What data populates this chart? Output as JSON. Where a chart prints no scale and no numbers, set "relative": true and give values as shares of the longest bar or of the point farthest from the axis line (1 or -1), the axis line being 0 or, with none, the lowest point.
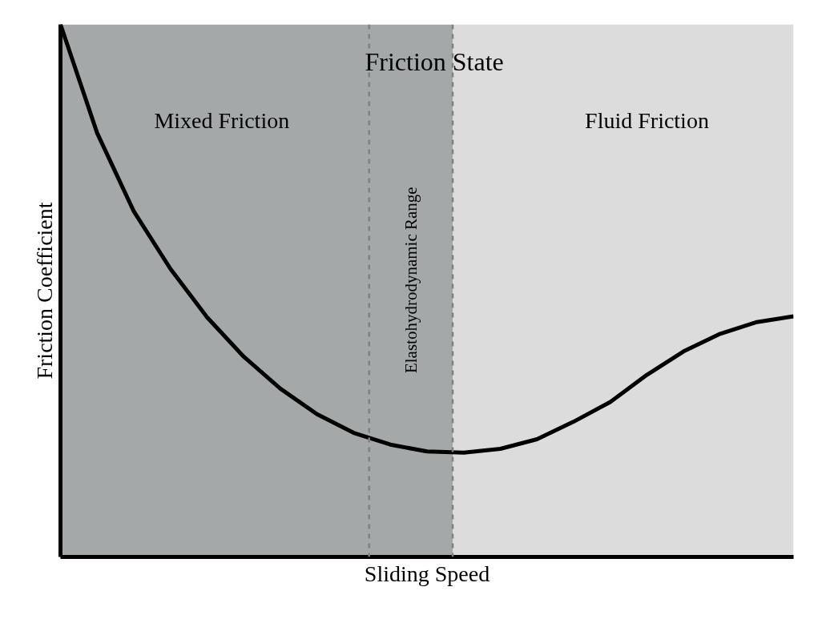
{
  "chart_data": {
    "type": "line",
    "relative": true,
    "title": "Friction State",
    "xlabel": "Sliding Speed",
    "ylabel": "Friction Coefficient",
    "categories": [
      null,
      null,
      null,
      null,
      null,
      null,
      null,
      null,
      null,
      null,
      null,
      null,
      null,
      null,
      null,
      null,
      null,
      null,
      null,
      null,
      null
    ],
    "series": [
      {
        "color": "#000000",
        "values": [
          1.0,
          0.796,
          0.649,
          0.541,
          0.45,
          0.376,
          0.316,
          0.268,
          0.233,
          0.211,
          0.198,
          0.196,
          0.203,
          0.221,
          0.254,
          0.291,
          0.342,
          0.386,
          0.419,
          0.441,
          0.452
        ]
      }
    ],
    "annotations": [
      "Mixed Friction",
      "Elastohydrodynamic Range",
      "Fluid Friction"
    ]
  }
}
